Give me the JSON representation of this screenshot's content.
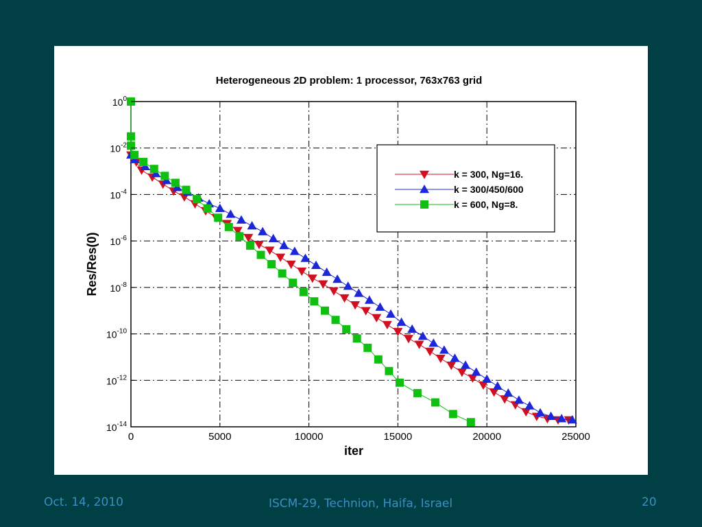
{
  "chart_data": {
    "type": "line",
    "title": "Heterogeneous 2D problem:  1 processor, 763x763 grid",
    "xlabel": "iter",
    "ylabel": "Res/Res(0)",
    "xlim": [
      0,
      25000
    ],
    "ylim_log10": [
      -14,
      0
    ],
    "yscale": "log",
    "x_ticks": [
      "0",
      "5000",
      "10000",
      "15000",
      "20000",
      "25000"
    ],
    "y_ticks": [
      {
        "base": "10",
        "exp": "0"
      },
      {
        "base": "10",
        "exp": "-2"
      },
      {
        "base": "10",
        "exp": "-4"
      },
      {
        "base": "10",
        "exp": "-6"
      },
      {
        "base": "10",
        "exp": "-8"
      },
      {
        "base": "10",
        "exp": "-10"
      },
      {
        "base": "10",
        "exp": "-12"
      },
      {
        "base": "10",
        "exp": "-14"
      }
    ],
    "grid": true,
    "legend_position": "upper-right",
    "series": [
      {
        "name": "k = 300,  Ng=16.",
        "color": "#d01020",
        "marker": "triangle-down",
        "x": [
          0,
          300,
          600,
          1200,
          1800,
          2400,
          3000,
          3600,
          4200,
          4800,
          5400,
          6000,
          6600,
          7200,
          7800,
          8400,
          9000,
          9600,
          10200,
          10800,
          11400,
          12000,
          12600,
          13200,
          13800,
          14400,
          15000,
          15600,
          16200,
          16800,
          17400,
          18000,
          18600,
          19200,
          19800,
          20400,
          21000,
          21600,
          22200,
          22800,
          23400,
          24000,
          24600
        ],
        "log10_y": [
          -2.3,
          -2.6,
          -2.95,
          -3.25,
          -3.55,
          -3.85,
          -4.1,
          -4.4,
          -4.7,
          -5.0,
          -5.25,
          -5.55,
          -5.85,
          -6.15,
          -6.4,
          -6.7,
          -7.0,
          -7.3,
          -7.6,
          -7.85,
          -8.15,
          -8.45,
          -8.75,
          -9.0,
          -9.3,
          -9.6,
          -9.9,
          -10.2,
          -10.45,
          -10.75,
          -11.05,
          -11.35,
          -11.65,
          -11.9,
          -12.2,
          -12.5,
          -12.8,
          -13.05,
          -13.35,
          -13.55,
          -13.65,
          -13.7,
          -13.7
        ]
      },
      {
        "name": "k = 300/450/600",
        "color": "#1c28d8",
        "marker": "triangle-up",
        "x": [
          0,
          200,
          800,
          1400,
          2000,
          2600,
          3200,
          3800,
          4400,
          5000,
          5600,
          6200,
          6800,
          7400,
          8000,
          8600,
          9200,
          9800,
          10400,
          11000,
          11600,
          12200,
          12800,
          13400,
          14000,
          14600,
          15200,
          15800,
          16400,
          17000,
          17600,
          18200,
          18800,
          19400,
          20000,
          20600,
          21200,
          21800,
          22400,
          23000,
          23600,
          24200,
          24800
        ],
        "log10_y": [
          -2.3,
          -2.5,
          -2.8,
          -3.1,
          -3.4,
          -3.7,
          -3.9,
          -4.15,
          -4.4,
          -4.6,
          -4.85,
          -5.1,
          -5.35,
          -5.6,
          -5.9,
          -6.2,
          -6.45,
          -6.75,
          -7.05,
          -7.35,
          -7.65,
          -7.95,
          -8.25,
          -8.55,
          -8.85,
          -9.15,
          -9.5,
          -9.8,
          -10.1,
          -10.4,
          -10.7,
          -11.05,
          -11.35,
          -11.65,
          -11.95,
          -12.25,
          -12.55,
          -12.85,
          -13.1,
          -13.4,
          -13.55,
          -13.65,
          -13.7
        ]
      },
      {
        "name": "k = 600,  Ng=8.",
        "color": "#10c010",
        "marker": "square",
        "x": [
          0,
          0,
          0,
          200,
          700,
          1300,
          1900,
          2500,
          3100,
          3700,
          4300,
          4900,
          5500,
          6100,
          6700,
          7300,
          7900,
          8500,
          9100,
          9700,
          10300,
          10900,
          11500,
          12100,
          12700,
          13300,
          13900,
          14500,
          15100,
          16100,
          17100,
          18100,
          19100
        ],
        "log10_y": [
          0.0,
          -1.5,
          -1.9,
          -2.3,
          -2.6,
          -2.9,
          -3.2,
          -3.5,
          -3.8,
          -4.2,
          -4.6,
          -5.0,
          -5.4,
          -5.8,
          -6.2,
          -6.6,
          -7.0,
          -7.4,
          -7.8,
          -8.2,
          -8.6,
          -9.0,
          -9.4,
          -9.8,
          -10.2,
          -10.6,
          -11.1,
          -11.6,
          -12.1,
          -12.55,
          -12.95,
          -13.45,
          -13.8
        ]
      }
    ]
  },
  "footer": {
    "date": "Oct. 14, 2010",
    "conference": "ISCM-29, Technion, Haifa, Israel",
    "page": "20"
  }
}
